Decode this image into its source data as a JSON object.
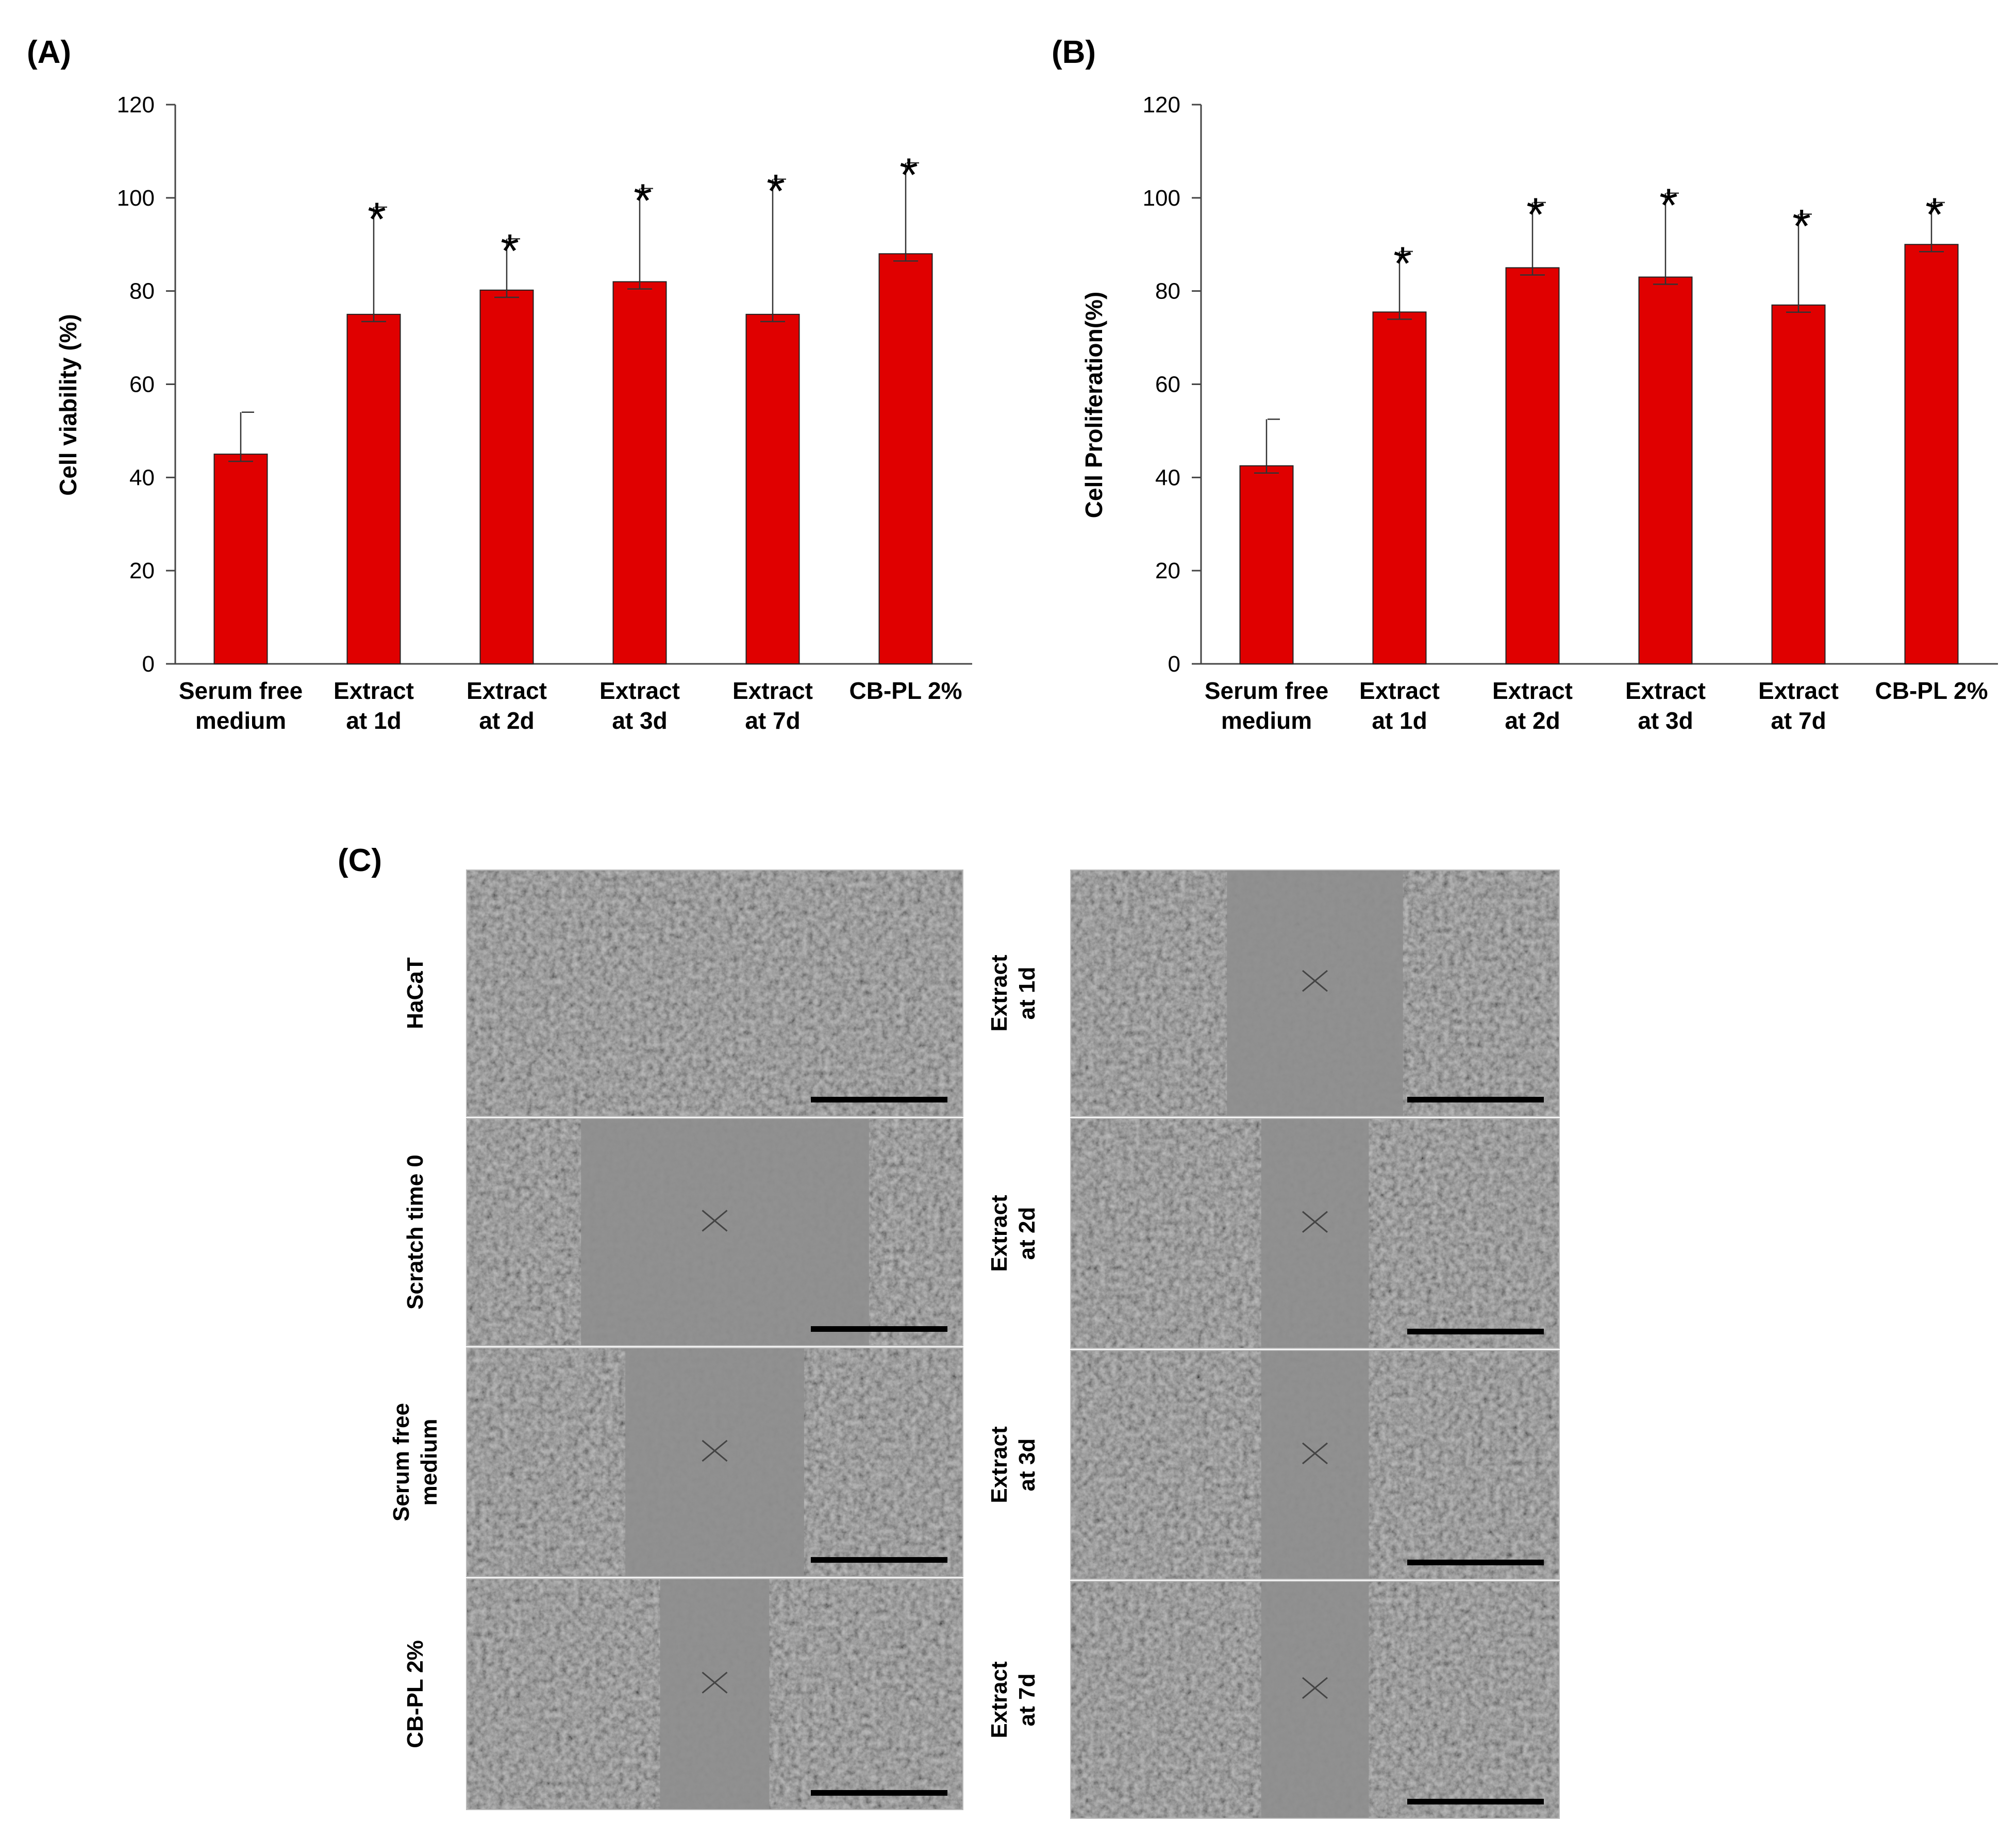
{
  "panels": {
    "a_label": "(A)",
    "b_label": "(B)",
    "c_label": "(C)"
  },
  "chart_data": [
    {
      "type": "bar",
      "panel": "(A)",
      "title": "",
      "xlabel": "",
      "ylabel": "Cell viability (%)",
      "ylim": [
        0,
        120
      ],
      "yticks": [
        "0",
        "20",
        "40",
        "60",
        "80",
        "100",
        "120"
      ],
      "grid": false,
      "bar_color": "#e00000",
      "categories": [
        [
          "Serum free",
          "medium"
        ],
        [
          "Extract",
          "at 1d"
        ],
        [
          "Extract",
          "at 2d"
        ],
        [
          "Extract",
          "at 3d"
        ],
        [
          "Extract",
          "at 7d"
        ],
        [
          "CB-PL 2%"
        ]
      ],
      "values": [
        45,
        75,
        80.2,
        82,
        75,
        88
      ],
      "errors": [
        9,
        23,
        11,
        20,
        29,
        19.5
      ],
      "significance": [
        "",
        "*",
        "*",
        "*",
        "*",
        "*"
      ]
    },
    {
      "type": "bar",
      "panel": "(B)",
      "title": "",
      "xlabel": "",
      "ylabel": "Cell Proliferation(%)",
      "ylim": [
        0,
        120
      ],
      "yticks": [
        "0",
        "20",
        "40",
        "60",
        "80",
        "100",
        "120"
      ],
      "grid": false,
      "bar_color": "#e00000",
      "categories": [
        [
          "Serum free",
          "medium"
        ],
        [
          "Extract",
          "at 1d"
        ],
        [
          "Extract",
          "at 2d"
        ],
        [
          "Extract",
          "at 3d"
        ],
        [
          "Extract",
          "at 7d"
        ],
        [
          "CB-PL 2%"
        ]
      ],
      "values": [
        42.5,
        75.5,
        85,
        83,
        77,
        90
      ],
      "errors": [
        10,
        13,
        14,
        18,
        19.5,
        9
      ],
      "significance": [
        "",
        "*",
        "*",
        "*",
        "*",
        "*"
      ]
    }
  ],
  "micrographs": {
    "left": [
      {
        "label": [
          "HaCaT"
        ],
        "gap": "none"
      },
      {
        "label": [
          "Scratch time 0"
        ],
        "gap": "wide"
      },
      {
        "label": [
          "Serum free",
          "medium"
        ],
        "gap": "medium"
      },
      {
        "label": [
          "CB-PL 2%"
        ],
        "gap": "narrow"
      }
    ],
    "right": [
      {
        "label": [
          "Extract",
          "at 1d"
        ],
        "gap": "medium"
      },
      {
        "label": [
          "Extract",
          "at 2d"
        ],
        "gap": "narrow"
      },
      {
        "label": [
          "Extract",
          "at 3d"
        ],
        "gap": "narrow"
      },
      {
        "label": [
          "Extract",
          "at 7d"
        ],
        "gap": "narrow"
      }
    ]
  }
}
